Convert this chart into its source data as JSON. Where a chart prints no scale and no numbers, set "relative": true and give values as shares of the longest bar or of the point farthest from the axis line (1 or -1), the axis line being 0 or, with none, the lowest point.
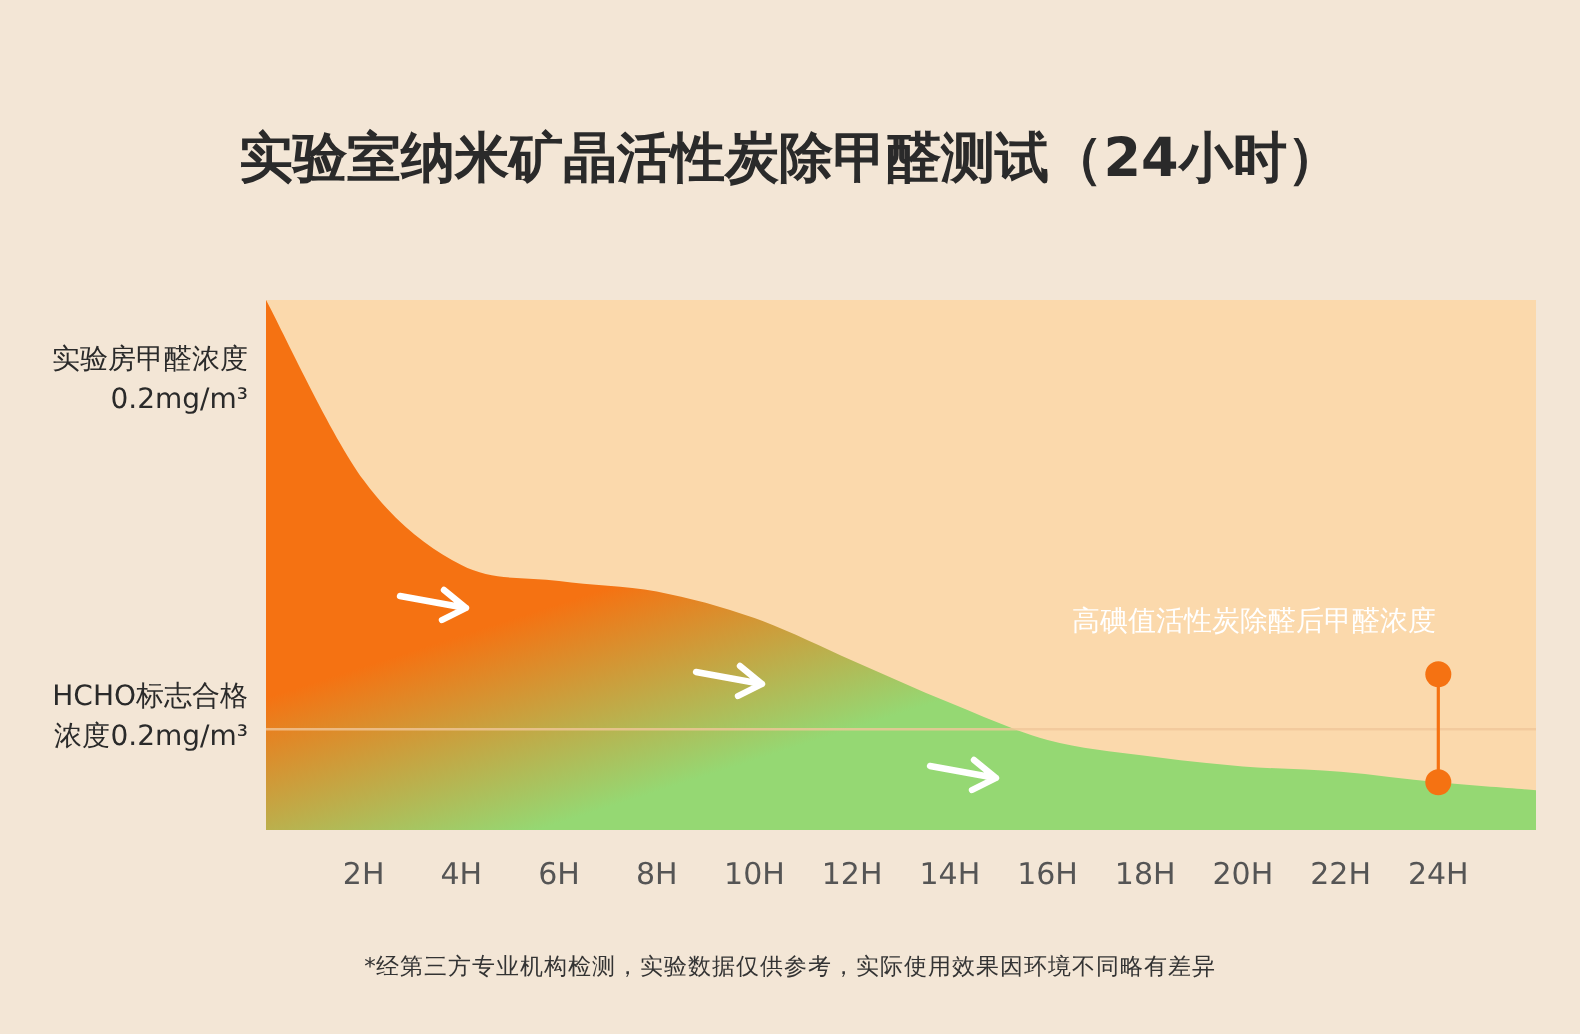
{
  "chart_data": {
    "type": "area",
    "title": "实验室纳米矿晶活性炭除甲醛测试（24小时）",
    "relative": true,
    "categories": [
      null,
      "2H",
      "4H",
      "6H",
      "8H",
      "10H",
      "12H",
      "14H",
      "16H",
      "18H",
      "20H",
      "22H",
      "24H",
      null
    ],
    "series": [
      {
        "color": "#f57212",
        "values": [
          1.0,
          0.66,
          0.5,
          0.47,
          0.45,
          0.4,
          0.32,
          0.24,
          0.17,
          0.14,
          0.12,
          0.11,
          0.09,
          0.075
        ]
      }
    ],
    "ref_lines": [
      {
        "axis": "y",
        "value": 0.19,
        "label": "HCHO标志合格浓度0.2mg/m³",
        "color": "#f1c79a"
      }
    ],
    "annotations": [
      "实验房甲醛浓度0.2mg/m³",
      {
        "text": "高碘值活性炭除醛后甲醛浓度",
        "x": "24H",
        "y": 0.09
      },
      "*经第三方专业机构检测，实验数据仅供参考，实际使用效果因环境不同略有差异"
    ]
  }
}
